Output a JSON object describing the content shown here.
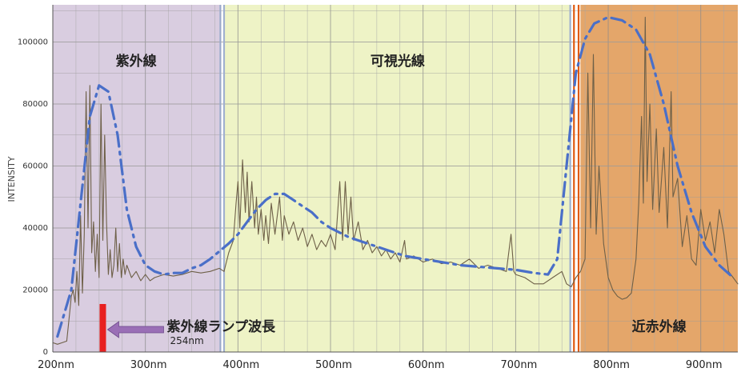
{
  "chart_data": {
    "type": "line",
    "ylabel": "INTENSITY",
    "xlim": [
      200,
      940
    ],
    "ylim": [
      0,
      112000
    ],
    "x_ticks": [
      {
        "value": 200,
        "label": "200nm"
      },
      {
        "value": 300,
        "label": "300nm"
      },
      {
        "value": 400,
        "label": "400nm"
      },
      {
        "value": 500,
        "label": "500nm"
      },
      {
        "value": 600,
        "label": "600nm"
      },
      {
        "value": 700,
        "label": "700nm"
      },
      {
        "value": 800,
        "label": "800nm"
      },
      {
        "value": 900,
        "label": "900nm"
      }
    ],
    "y_ticks": [
      {
        "value": 0,
        "label": "0"
      },
      {
        "value": 20000,
        "label": "20000"
      },
      {
        "value": 40000,
        "label": "40000"
      },
      {
        "value": 60000,
        "label": "60000"
      },
      {
        "value": 80000,
        "label": "80000"
      },
      {
        "value": 100000,
        "label": "100000"
      }
    ],
    "regions": [
      {
        "label": "紫外線",
        "x": [
          200,
          380
        ],
        "color": "#d9cde0"
      },
      {
        "label": "可視光線",
        "x": [
          385,
          760
        ],
        "color": "#eef3c6"
      },
      {
        "label": "近赤外線",
        "x": [
          770,
          940
        ],
        "color": "#e4a66a"
      }
    ],
    "grid": true,
    "series": [
      {
        "values_description": "spectrum",
        "color": "#6e6048",
        "points": [
          [
            200,
            3000
          ],
          [
            205,
            2500
          ],
          [
            210,
            3000
          ],
          [
            215,
            3500
          ],
          [
            218,
            12000
          ],
          [
            220,
            18000
          ],
          [
            222,
            20000
          ],
          [
            224,
            16000
          ],
          [
            226,
            26000
          ],
          [
            228,
            15000
          ],
          [
            230,
            44000
          ],
          [
            232,
            19000
          ],
          [
            234,
            38000
          ],
          [
            236,
            84000
          ],
          [
            238,
            40000
          ],
          [
            240,
            86000
          ],
          [
            242,
            32000
          ],
          [
            244,
            42000
          ],
          [
            246,
            26000
          ],
          [
            248,
            38000
          ],
          [
            250,
            24000
          ],
          [
            252,
            80000
          ],
          [
            254,
            36000
          ],
          [
            256,
            70000
          ],
          [
            258,
            42000
          ],
          [
            260,
            25000
          ],
          [
            262,
            33000
          ],
          [
            264,
            24000
          ],
          [
            266,
            28000
          ],
          [
            268,
            40000
          ],
          [
            270,
            26000
          ],
          [
            272,
            35000
          ],
          [
            274,
            24000
          ],
          [
            276,
            30000
          ],
          [
            278,
            25000
          ],
          [
            280,
            28000
          ],
          [
            285,
            24000
          ],
          [
            290,
            26000
          ],
          [
            295,
            23000
          ],
          [
            300,
            25000
          ],
          [
            305,
            23000
          ],
          [
            310,
            24000
          ],
          [
            320,
            25000
          ],
          [
            330,
            24500
          ],
          [
            340,
            25000
          ],
          [
            350,
            26000
          ],
          [
            360,
            25500
          ],
          [
            370,
            26000
          ],
          [
            380,
            27000
          ],
          [
            385,
            26000
          ],
          [
            390,
            32000
          ],
          [
            395,
            36000
          ],
          [
            398,
            48000
          ],
          [
            400,
            55000
          ],
          [
            402,
            40000
          ],
          [
            405,
            62000
          ],
          [
            408,
            45000
          ],
          [
            410,
            58000
          ],
          [
            412,
            42000
          ],
          [
            415,
            55000
          ],
          [
            418,
            40000
          ],
          [
            420,
            50000
          ],
          [
            422,
            38000
          ],
          [
            425,
            46000
          ],
          [
            428,
            36000
          ],
          [
            430,
            44000
          ],
          [
            433,
            35000
          ],
          [
            436,
            48000
          ],
          [
            440,
            38000
          ],
          [
            445,
            50000
          ],
          [
            448,
            36000
          ],
          [
            450,
            44000
          ],
          [
            455,
            38000
          ],
          [
            460,
            42000
          ],
          [
            465,
            36000
          ],
          [
            470,
            40000
          ],
          [
            475,
            34000
          ],
          [
            480,
            38000
          ],
          [
            485,
            33000
          ],
          [
            490,
            36000
          ],
          [
            495,
            34000
          ],
          [
            500,
            38000
          ],
          [
            505,
            33000
          ],
          [
            510,
            55000
          ],
          [
            513,
            36000
          ],
          [
            516,
            55000
          ],
          [
            519,
            38000
          ],
          [
            522,
            50000
          ],
          [
            525,
            36000
          ],
          [
            530,
            42000
          ],
          [
            535,
            33000
          ],
          [
            540,
            36000
          ],
          [
            545,
            32000
          ],
          [
            550,
            34000
          ],
          [
            555,
            31000
          ],
          [
            560,
            33000
          ],
          [
            565,
            30000
          ],
          [
            570,
            32000
          ],
          [
            575,
            29000
          ],
          [
            580,
            36000
          ],
          [
            582,
            30000
          ],
          [
            590,
            31000
          ],
          [
            600,
            29000
          ],
          [
            610,
            30000
          ],
          [
            620,
            28500
          ],
          [
            630,
            29000
          ],
          [
            640,
            28000
          ],
          [
            650,
            30000
          ],
          [
            660,
            27000
          ],
          [
            670,
            28000
          ],
          [
            680,
            27000
          ],
          [
            690,
            26000
          ],
          [
            695,
            38000
          ],
          [
            698,
            26000
          ],
          [
            700,
            25000
          ],
          [
            710,
            24000
          ],
          [
            720,
            22000
          ],
          [
            730,
            22000
          ],
          [
            740,
            24000
          ],
          [
            750,
            26000
          ],
          [
            755,
            22000
          ],
          [
            760,
            21000
          ],
          [
            765,
            24000
          ],
          [
            770,
            26000
          ],
          [
            775,
            30000
          ],
          [
            778,
            90000
          ],
          [
            781,
            40000
          ],
          [
            784,
            96000
          ],
          [
            787,
            38000
          ],
          [
            790,
            60000
          ],
          [
            795,
            35000
          ],
          [
            800,
            24000
          ],
          [
            805,
            20000
          ],
          [
            810,
            18000
          ],
          [
            815,
            17000
          ],
          [
            820,
            17500
          ],
          [
            825,
            19000
          ],
          [
            830,
            30000
          ],
          [
            833,
            48000
          ],
          [
            836,
            76000
          ],
          [
            838,
            48000
          ],
          [
            840,
            108000
          ],
          [
            842,
            55000
          ],
          [
            845,
            80000
          ],
          [
            848,
            46000
          ],
          [
            852,
            72000
          ],
          [
            855,
            45000
          ],
          [
            860,
            66000
          ],
          [
            864,
            40000
          ],
          [
            868,
            84000
          ],
          [
            870,
            50000
          ],
          [
            875,
            56000
          ],
          [
            880,
            34000
          ],
          [
            885,
            44000
          ],
          [
            890,
            30000
          ],
          [
            895,
            28000
          ],
          [
            900,
            46000
          ],
          [
            905,
            36000
          ],
          [
            910,
            42000
          ],
          [
            915,
            32000
          ],
          [
            920,
            46000
          ],
          [
            925,
            38000
          ],
          [
            930,
            26000
          ],
          [
            935,
            24000
          ],
          [
            940,
            22000
          ]
        ]
      },
      {
        "values_description": "envelope",
        "color": "#4a6fc8",
        "dash": "dashdot",
        "points": [
          [
            205,
            5000
          ],
          [
            220,
            20000
          ],
          [
            230,
            48000
          ],
          [
            240,
            76000
          ],
          [
            250,
            86000
          ],
          [
            260,
            84000
          ],
          [
            270,
            70000
          ],
          [
            280,
            46000
          ],
          [
            290,
            34000
          ],
          [
            300,
            28000
          ],
          [
            310,
            26000
          ],
          [
            320,
            25000
          ],
          [
            330,
            25500
          ],
          [
            340,
            25500
          ],
          [
            350,
            27000
          ],
          [
            360,
            28000
          ],
          [
            370,
            30000
          ],
          [
            380,
            32500
          ],
          [
            390,
            35000
          ],
          [
            400,
            38000
          ],
          [
            410,
            42000
          ],
          [
            420,
            46000
          ],
          [
            430,
            49000
          ],
          [
            440,
            51000
          ],
          [
            450,
            51000
          ],
          [
            460,
            49000
          ],
          [
            470,
            47000
          ],
          [
            480,
            45000
          ],
          [
            490,
            42000
          ],
          [
            500,
            40000
          ],
          [
            520,
            37000
          ],
          [
            540,
            35000
          ],
          [
            560,
            33000
          ],
          [
            580,
            31000
          ],
          [
            600,
            30000
          ],
          [
            620,
            29000
          ],
          [
            640,
            28000
          ],
          [
            660,
            27500
          ],
          [
            680,
            27000
          ],
          [
            700,
            26500
          ],
          [
            720,
            25500
          ],
          [
            735,
            25000
          ],
          [
            745,
            30000
          ],
          [
            755,
            60000
          ],
          [
            765,
            90000
          ],
          [
            775,
            101000
          ],
          [
            785,
            106000
          ],
          [
            800,
            108000
          ],
          [
            815,
            107000
          ],
          [
            830,
            104000
          ],
          [
            845,
            96000
          ],
          [
            860,
            80000
          ],
          [
            875,
            60000
          ],
          [
            890,
            45000
          ],
          [
            905,
            34000
          ],
          [
            920,
            28000
          ],
          [
            935,
            24000
          ]
        ]
      }
    ],
    "markers": [
      {
        "x": 254,
        "color": "#e82020"
      }
    ],
    "dividers": [
      {
        "x": 381,
        "color": "#9aa7c8"
      },
      {
        "x": 385,
        "color": "#a0b0d0"
      },
      {
        "x": 759,
        "color": "#a0b0d0"
      },
      {
        "x": 763,
        "color": "#e05a10"
      },
      {
        "x": 768,
        "color": "#e05a10"
      }
    ],
    "annotation": {
      "text": "紫外線ランプ波長",
      "subtext": "254nm",
      "arrow_color": "#9a6fb6"
    }
  }
}
